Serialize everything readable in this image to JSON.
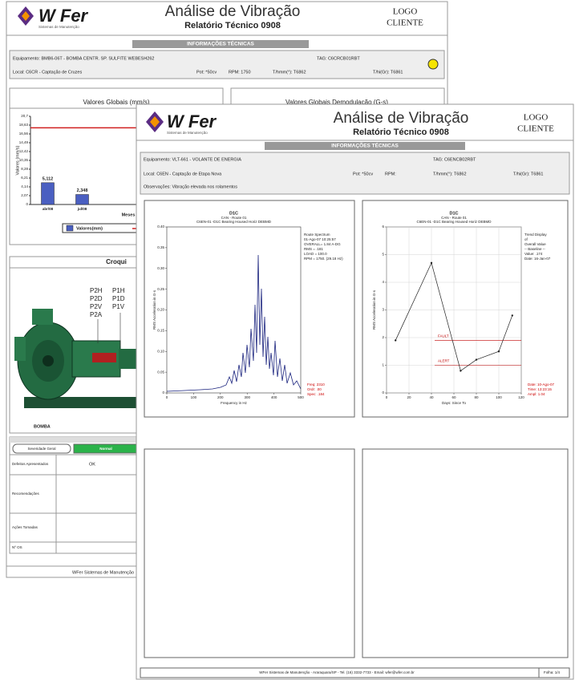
{
  "back_page": {
    "header": {
      "logo": "W Fer",
      "logo_sub": "Sistemas de Manutenção",
      "title": "Análise de Vibração",
      "subtitle": "Relatório Técnico 0908",
      "client_logo": [
        "LOGO",
        "CLIENTE"
      ]
    },
    "info": {
      "heading": "INFORMAÇÕES TÉCNICAS",
      "equipment": "Equipamento: BMB6-06T - BOMBA CENTR. SP. SULFITE WEBESH262",
      "tag": "TAG: C6CRCB01RBT",
      "location": "Local: C6CR - Captação de Cruzes",
      "power": "Pot: *50cv",
      "rpm": "RPM: 1750",
      "t_bearing": "T/hmm(°): T6862",
      "t_other": "T/hi(Gr): T6861"
    },
    "global_chart": {
      "title": "Valores Globais (mm/s)",
      "y_label": "Valores (mm/s)",
      "x_label": "Meses",
      "legend": "Valores(mm)",
      "categories": [
        "abr/08",
        "jul/08"
      ],
      "values": [
        5.112,
        2.348
      ],
      "value_labels": [
        "5,112",
        "2,348"
      ],
      "color": "#4a5fc1",
      "alarm": 18,
      "alarm_color": "#d02020",
      "ylim": [
        0,
        20.7
      ],
      "yticks": [
        0,
        {
          "value": 2.07,
          "label": "2,07"
        },
        {
          "value": 4.14,
          "label": "4,14"
        },
        {
          "value": 6.21,
          "label": "6,21"
        },
        {
          "value": 8.28,
          "label": "8,28"
        },
        {
          "value": 10.35,
          "label": "10,35"
        },
        {
          "value": 12.42,
          "label": "12,42"
        },
        {
          "value": 14.49,
          "label": "14,49"
        },
        {
          "value": 16.56,
          "label": "16,56"
        },
        {
          "value": 18.63,
          "label": "18,63"
        },
        {
          "value": 20.7,
          "label": "20,7"
        }
      ]
    },
    "demod_title": "Valores Globais Demodulação (G-s)",
    "sketch": {
      "title": "Croqui",
      "points_left": [
        "P2H",
        "P2D",
        "P2V",
        "P2A"
      ],
      "points_right": [
        "P1H",
        "P1D",
        "P1V"
      ],
      "label": "BOMBA"
    },
    "severity": {
      "label": "Severidade Geral",
      "status": "Normal",
      "rows": [
        "Defeitos Apresentados",
        "Recomendações",
        "Ações Tomadas",
        "Nº OS"
      ],
      "defects_value": "OK"
    },
    "footer": "WFer Sistemas de Manutenção"
  },
  "front_page": {
    "header": {
      "logo": "W Fer",
      "logo_sub": "Sistemas de Manutenção",
      "title": "Análise de Vibração",
      "subtitle": "Relatório Técnico 0908",
      "client_logo": [
        "LOGO",
        "CLIENTE"
      ]
    },
    "info": {
      "heading": "INFORMAÇÕES TÉCNICAS",
      "equipment": "Equipamento: VLT-661 - VOLANTE DE ENERGIA",
      "tag": "TAG: C6ENCB02RBT",
      "location": "Local: C6EN - Captação de Etapa Nova",
      "power": "Pot: *50cv",
      "rpm": "RPM:",
      "t_bearing": "T/hmm(°): T6862",
      "t_other": "T/hi(Gr): T6861",
      "observations": "Observações: Vibração elevada nos rolamentos"
    },
    "spectrum_chart": {
      "title": "D1C",
      "subtitle": [
        "CAN - Route 01",
        "C6EN-01 -D1C Bearing Housed Horiz DEBMD"
      ],
      "y_label": "RMS Acceleration in G-s",
      "x_label": "Frequency in Hz",
      "notes": [
        "Route Spectrum",
        "01-Ago-07 10:25:57",
        "OVERALL= 1.84 A-DG",
        "RMS = .181",
        "LOAD = 100.0",
        "RPM = 1750. (29.18 Hz)"
      ],
      "cursor": [
        "Freq: 2310",
        "Ordr: .00",
        "Spec: .184"
      ],
      "xlim": [
        0,
        500
      ],
      "xticks": [
        0,
        100,
        200,
        300,
        400,
        500
      ],
      "ylim": [
        0,
        0.4
      ],
      "yticks": [
        0,
        0.05,
        {
          "value": 0.1,
          "label": "0.10"
        },
        0.15,
        {
          "value": 0.2,
          "label": "0.20"
        },
        0.25,
        {
          "value": 0.3,
          "label": "0.30"
        },
        0.35,
        {
          "value": 0.4,
          "label": "0.40"
        }
      ],
      "color": "#1a237e"
    },
    "trend_chart": {
      "title": "D1C",
      "subtitle": [
        "CAN - Route 01",
        "C6EN-01 -D1C Bearing Housed Horiz DEBMD"
      ],
      "y_label": "RMS Acceleration in G-s",
      "x_label": "Days: Since To",
      "notes": [
        "Trend Display",
        "of",
        "Overall Value",
        "-- Baseline --",
        "Value: .174",
        "Date: 16-Jan-07"
      ],
      "cursor": [
        "Date: 10-Ago-07",
        "Time: 13:23:15",
        "Ampl: 1.04"
      ],
      "x": [
        8,
        40,
        66,
        80,
        100,
        112
      ],
      "values": [
        1.9,
        4.7,
        0.8,
        1.2,
        1.5,
        2.8
      ],
      "color": "#222",
      "fault": 1.9,
      "fault_label": "FAULT",
      "alert": 1.0,
      "alert_label": "ALERT",
      "alarm_color": "#c00000",
      "xlim": [
        0,
        120
      ],
      "xticks": [
        0,
        20,
        40,
        60,
        80,
        100,
        120
      ],
      "ylim": [
        0,
        6
      ],
      "yticks": [
        0,
        1,
        2,
        3,
        4,
        5,
        6
      ],
      "grid": true
    },
    "footer": "WFer Sistemas de Manutenção - Araraquara/SP - Tel. (16) 3332-7733 - Email: wfer@wfer.com.br",
    "sheet": "Folha: 1/4"
  }
}
